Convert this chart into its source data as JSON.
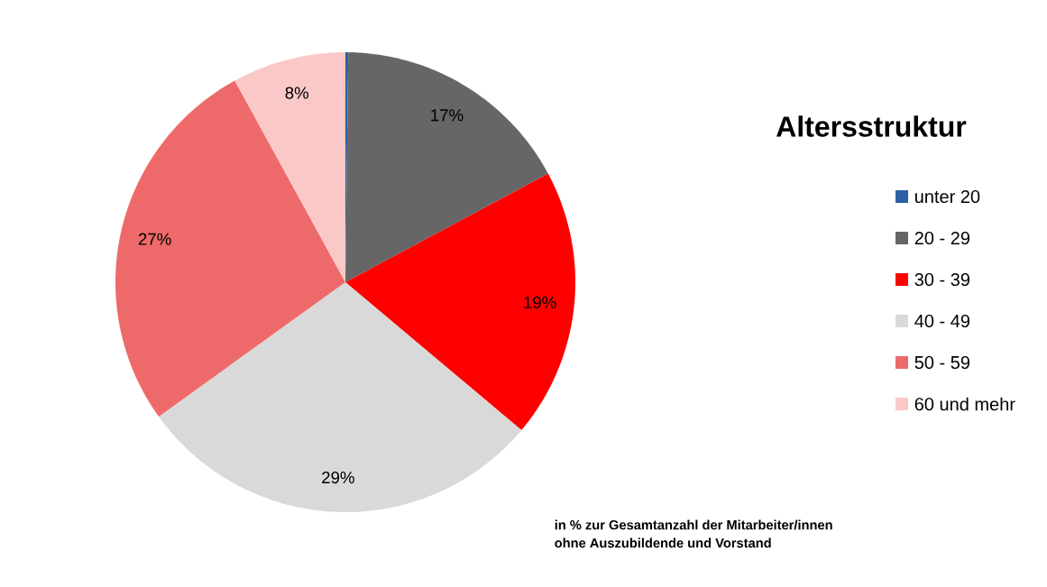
{
  "chart_data": {
    "type": "pie",
    "title": "Altersstruktur",
    "categories": [
      "unter 20",
      "20 - 29",
      "30 - 39",
      "40 - 49",
      "50 - 59",
      "60 und mehr"
    ],
    "values": [
      0.2,
      17,
      19,
      29,
      27,
      8
    ],
    "value_labels": [
      null,
      "17%",
      "19%",
      "29%",
      "27%",
      "8%"
    ],
    "colors": [
      "#2e5fa3",
      "#666666",
      "#ff0000",
      "#d9d9d9",
      "#ee6a6a",
      "#fbc8c8"
    ],
    "legend": "right",
    "annotations": [
      "in % zur Gesamtanzahl der Mitarbeiter/innen",
      "ohne Auszubildende und Vorstand"
    ]
  }
}
